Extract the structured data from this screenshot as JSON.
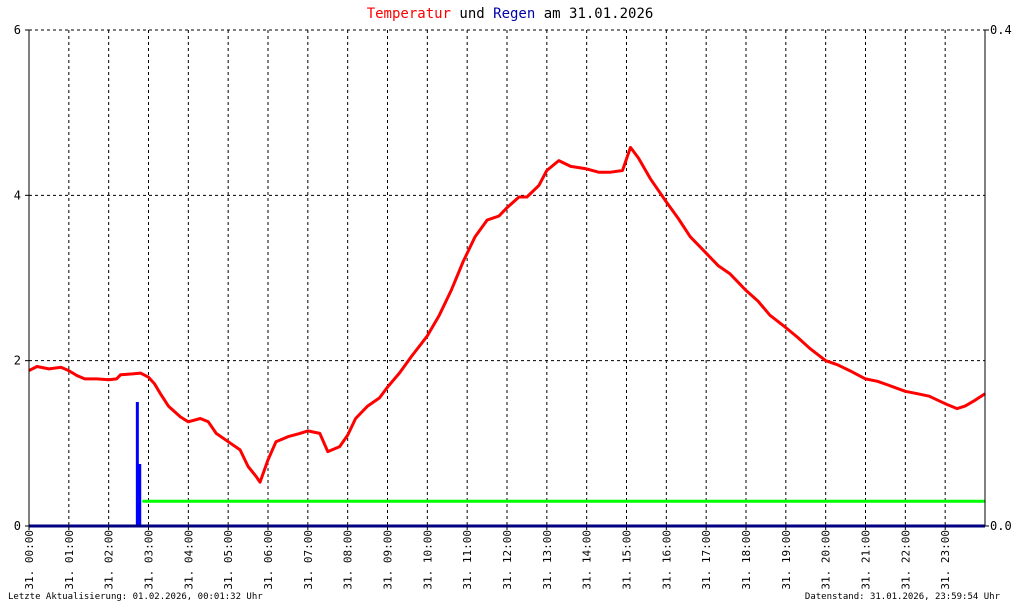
{
  "title": {
    "part1": "Temperatur",
    "part2": " und ",
    "part3": "Regen",
    "part4": " am 31.01.2026",
    "color1": "#ff0000",
    "color3": "#0000aa"
  },
  "footer": {
    "left": "Letzte Aktualisierung: 01.02.2026, 00:01:32 Uhr",
    "right": "Datenstand: 31.01.2026, 23:59:54 Uhr"
  },
  "chart_data": {
    "type": "line",
    "x_unit": "hour",
    "xlim": [
      0,
      24
    ],
    "x_ticks": [
      "31. 00:00",
      "31. 01:00",
      "31. 02:00",
      "31. 03:00",
      "31. 04:00",
      "31. 05:00",
      "31. 06:00",
      "31. 07:00",
      "31. 08:00",
      "31. 09:00",
      "31. 10:00",
      "31. 11:00",
      "31. 12:00",
      "31. 13:00",
      "31. 14:00",
      "31. 15:00",
      "31. 16:00",
      "31. 17:00",
      "31. 18:00",
      "31. 19:00",
      "31. 20:00",
      "31. 21:00",
      "31. 22:00",
      "31. 23:00"
    ],
    "y_left": {
      "ylim": [
        0,
        6
      ],
      "ticks": [
        "0",
        "2",
        "4",
        "6"
      ]
    },
    "y_right": {
      "ylim": [
        0,
        0.4
      ],
      "ticks": [
        "0.0",
        "0.4"
      ]
    },
    "grid": true,
    "series": [
      {
        "color": "#ff0000",
        "axis": "left",
        "points": [
          [
            0,
            1.88
          ],
          [
            0.2,
            1.93
          ],
          [
            0.5,
            1.9
          ],
          [
            0.8,
            1.92
          ],
          [
            1.0,
            1.88
          ],
          [
            1.2,
            1.82
          ],
          [
            1.4,
            1.78
          ],
          [
            1.7,
            1.78
          ],
          [
            2.0,
            1.77
          ],
          [
            2.2,
            1.78
          ],
          [
            2.3,
            1.83
          ],
          [
            2.6,
            1.84
          ],
          [
            2.8,
            1.85
          ],
          [
            3.0,
            1.8
          ],
          [
            3.15,
            1.72
          ],
          [
            3.3,
            1.6
          ],
          [
            3.5,
            1.45
          ],
          [
            3.8,
            1.32
          ],
          [
            4.0,
            1.26
          ],
          [
            4.3,
            1.3
          ],
          [
            4.5,
            1.26
          ],
          [
            4.7,
            1.12
          ],
          [
            5.0,
            1.02
          ],
          [
            5.3,
            0.92
          ],
          [
            5.5,
            0.72
          ],
          [
            5.7,
            0.6
          ],
          [
            5.8,
            0.53
          ],
          [
            6.0,
            0.8
          ],
          [
            6.2,
            1.02
          ],
          [
            6.5,
            1.08
          ],
          [
            6.8,
            1.12
          ],
          [
            7.0,
            1.15
          ],
          [
            7.3,
            1.12
          ],
          [
            7.5,
            0.9
          ],
          [
            7.8,
            0.96
          ],
          [
            8.0,
            1.1
          ],
          [
            8.2,
            1.3
          ],
          [
            8.5,
            1.45
          ],
          [
            8.8,
            1.55
          ],
          [
            9.0,
            1.68
          ],
          [
            9.3,
            1.85
          ],
          [
            9.6,
            2.05
          ],
          [
            10.0,
            2.3
          ],
          [
            10.3,
            2.55
          ],
          [
            10.6,
            2.85
          ],
          [
            10.9,
            3.2
          ],
          [
            11.2,
            3.5
          ],
          [
            11.5,
            3.7
          ],
          [
            11.8,
            3.75
          ],
          [
            12.0,
            3.85
          ],
          [
            12.3,
            3.98
          ],
          [
            12.5,
            3.98
          ],
          [
            12.8,
            4.12
          ],
          [
            13.0,
            4.3
          ],
          [
            13.3,
            4.42
          ],
          [
            13.6,
            4.35
          ],
          [
            14.0,
            4.32
          ],
          [
            14.3,
            4.28
          ],
          [
            14.6,
            4.28
          ],
          [
            14.9,
            4.3
          ],
          [
            15.1,
            4.58
          ],
          [
            15.3,
            4.45
          ],
          [
            15.6,
            4.2
          ],
          [
            16.0,
            3.92
          ],
          [
            16.3,
            3.72
          ],
          [
            16.6,
            3.5
          ],
          [
            17.0,
            3.3
          ],
          [
            17.3,
            3.15
          ],
          [
            17.6,
            3.05
          ],
          [
            18.0,
            2.85
          ],
          [
            18.3,
            2.72
          ],
          [
            18.6,
            2.55
          ],
          [
            19.0,
            2.4
          ],
          [
            19.3,
            2.28
          ],
          [
            19.6,
            2.15
          ],
          [
            20.0,
            2.0
          ],
          [
            20.3,
            1.95
          ],
          [
            20.6,
            1.88
          ],
          [
            21.0,
            1.78
          ],
          [
            21.3,
            1.75
          ],
          [
            21.6,
            1.7
          ],
          [
            22.0,
            1.63
          ],
          [
            22.3,
            1.6
          ],
          [
            22.6,
            1.57
          ],
          [
            23.0,
            1.48
          ],
          [
            23.3,
            1.42
          ],
          [
            23.5,
            1.45
          ],
          [
            23.75,
            1.52
          ],
          [
            24.0,
            1.6
          ]
        ]
      },
      {
        "color": "#0000ff",
        "axis": "right",
        "type": "bar",
        "points": [
          [
            2.72,
            0.1
          ],
          [
            2.78,
            0.05
          ]
        ]
      },
      {
        "color": "#00ff00",
        "axis": "right",
        "points": [
          [
            2.85,
            0.02
          ],
          [
            24,
            0.02
          ]
        ]
      }
    ]
  }
}
